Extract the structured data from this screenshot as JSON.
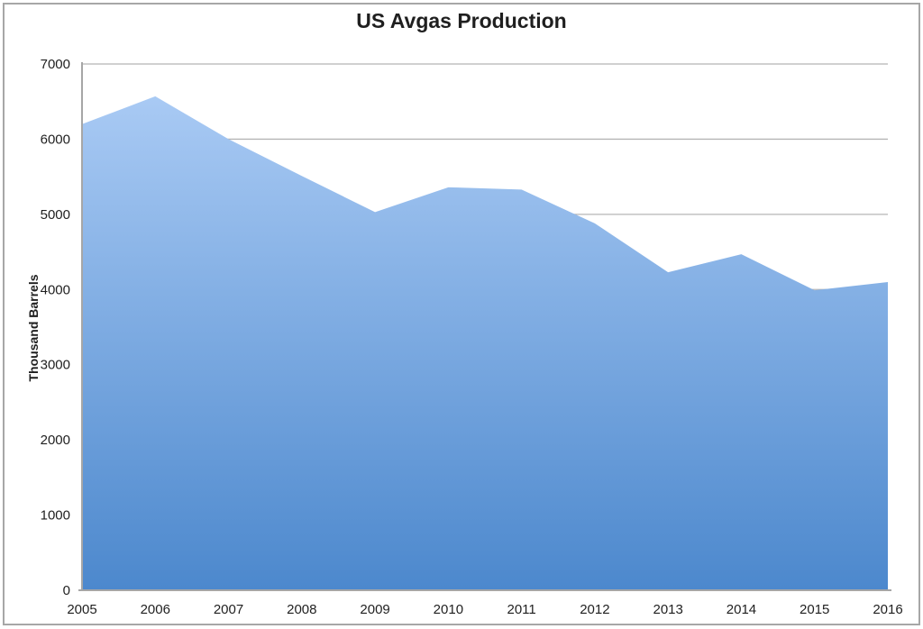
{
  "chart_data": {
    "type": "area",
    "title": "US Avgas Production",
    "ylabel": "Thousand Barrels",
    "xlabel": "",
    "categories": [
      "2005",
      "2006",
      "2007",
      "2008",
      "2009",
      "2010",
      "2011",
      "2012",
      "2013",
      "2014",
      "2015",
      "2016"
    ],
    "values": [
      6200,
      6570,
      6000,
      5510,
      5030,
      5360,
      5330,
      4880,
      4230,
      4470,
      3990,
      4100
    ],
    "ylim": [
      0,
      7000
    ],
    "y_tick_interval": 1000,
    "y_ticks": [
      "0",
      "1000",
      "2000",
      "3000",
      "4000",
      "5000",
      "6000",
      "7000"
    ],
    "grid": true,
    "legend": "none",
    "colors": {
      "area_gradient_top": "#a9caf4",
      "area_gradient_bottom": "#4c88cd",
      "gridline": "#b5b5b5",
      "axis_line": "#a6a6a6",
      "text": "#1f1f1f",
      "figure_border": "#a7a7a7",
      "background": "#ffffff"
    }
  }
}
